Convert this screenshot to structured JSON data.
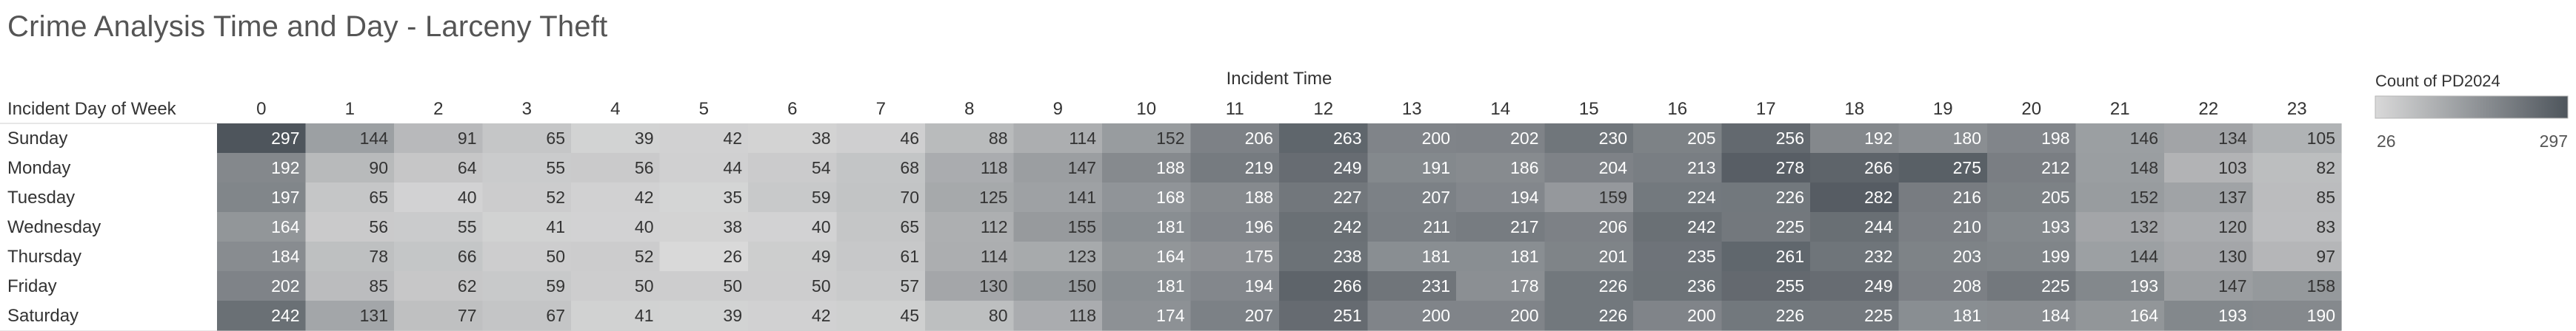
{
  "title": "Crime Analysis Time and Day - Larceny Theft",
  "chart_data": {
    "type": "heatmap",
    "title": "Crime Analysis Time and Day - Larceny Theft",
    "xlabel": "Incident Time",
    "ylabel": "Incident Day of Week",
    "x_categories": [
      "0",
      "1",
      "2",
      "3",
      "4",
      "5",
      "6",
      "7",
      "8",
      "9",
      "10",
      "11",
      "12",
      "13",
      "14",
      "15",
      "16",
      "17",
      "18",
      "19",
      "20",
      "21",
      "22",
      "23"
    ],
    "y_categories": [
      "Sunday",
      "Monday",
      "Tuesday",
      "Wednesday",
      "Thursday",
      "Friday",
      "Saturday"
    ],
    "values": [
      [
        297,
        144,
        91,
        65,
        39,
        42,
        38,
        46,
        88,
        114,
        152,
        206,
        263,
        200,
        202,
        230,
        205,
        256,
        192,
        180,
        198,
        146,
        134,
        105
      ],
      [
        192,
        90,
        64,
        55,
        56,
        44,
        54,
        68,
        118,
        147,
        188,
        219,
        249,
        191,
        186,
        204,
        213,
        278,
        266,
        275,
        212,
        148,
        103,
        82
      ],
      [
        197,
        65,
        40,
        52,
        42,
        35,
        59,
        70,
        125,
        141,
        168,
        188,
        227,
        207,
        194,
        159,
        224,
        226,
        282,
        216,
        205,
        152,
        137,
        85
      ],
      [
        164,
        56,
        55,
        41,
        40,
        38,
        40,
        65,
        112,
        155,
        181,
        196,
        242,
        211,
        217,
        206,
        242,
        225,
        244,
        210,
        193,
        132,
        120,
        83
      ],
      [
        184,
        78,
        66,
        50,
        52,
        26,
        49,
        61,
        114,
        123,
        164,
        175,
        238,
        181,
        181,
        201,
        235,
        261,
        232,
        203,
        199,
        144,
        130,
        97
      ],
      [
        202,
        85,
        62,
        59,
        50,
        50,
        50,
        57,
        130,
        150,
        181,
        194,
        266,
        231,
        178,
        226,
        236,
        255,
        249,
        208,
        225,
        193,
        147,
        158
      ],
      [
        242,
        131,
        77,
        67,
        41,
        39,
        42,
        45,
        80,
        118,
        174,
        207,
        251,
        200,
        200,
        226,
        200,
        226,
        225,
        181,
        184,
        164,
        193,
        190
      ]
    ],
    "legend": {
      "title": "Count of PD2024",
      "min": 26,
      "max": 297,
      "min_label": "26",
      "max_label": "297",
      "low_color": "#d9d9d9",
      "high_color": "#4e555c",
      "placement": "right"
    }
  }
}
